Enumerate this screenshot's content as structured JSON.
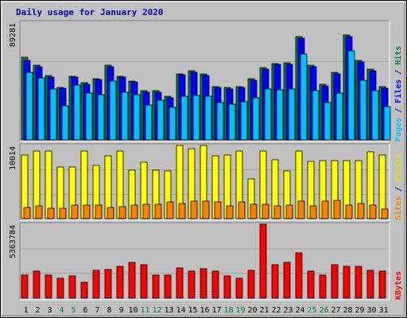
{
  "chart_data": {
    "type": "bar",
    "title": "Daily usage for January 2020",
    "categories": [
      "1",
      "2",
      "3",
      "4",
      "5",
      "6",
      "7",
      "8",
      "9",
      "10",
      "11",
      "12",
      "13",
      "14",
      "15",
      "16",
      "17",
      "18",
      "19",
      "20",
      "21",
      "22",
      "23",
      "24",
      "25",
      "26",
      "27",
      "28",
      "29",
      "30",
      "31"
    ],
    "weekend_days": [
      "4",
      "5",
      "11",
      "12",
      "18",
      "19",
      "25",
      "26"
    ],
    "panels": [
      {
        "id": "hits",
        "max_label": "89281",
        "ylim": [
          0,
          89281
        ],
        "axis_label": [
          {
            "text": "Pages",
            "color": "#00c0ff"
          },
          {
            "text": " / ",
            "color": "#000080"
          },
          {
            "text": "Files",
            "color": "#0000ff"
          },
          {
            "text": " / ",
            "color": "#000080"
          },
          {
            "text": "Hits",
            "color": "#008040"
          }
        ],
        "series": [
          {
            "name": "Hits",
            "color": "#008040",
            "values": [
              63000,
              56500,
              48800,
              40000,
              48200,
              43300,
              46200,
              56600,
              48500,
              44800,
              37100,
              37100,
              33000,
              50000,
              52300,
              50000,
              40700,
              39700,
              40700,
              46200,
              55000,
              58200,
              58300,
              78400,
              56800,
              42200,
              51200,
              79500,
              60200,
              53800,
              40400
            ]
          },
          {
            "name": "Files",
            "color": "#0000ff",
            "values": [
              60500,
              55400,
              47700,
              39500,
              47700,
              42200,
              46000,
              55400,
              47700,
              44100,
              36400,
              36400,
              32200,
              49200,
              51300,
              49000,
              39700,
              38600,
              39700,
              45200,
              53700,
              57300,
              57200,
              77400,
              55400,
              41000,
              50000,
              78400,
              59100,
              52700,
              39400
            ]
          },
          {
            "name": "Pages",
            "color": "#00c0ff",
            "values": [
              51000,
              46900,
              38900,
              25700,
              41500,
              35600,
              34300,
              44400,
              36400,
              34100,
              26800,
              29900,
              24700,
              33200,
              33600,
              33200,
              28600,
              27300,
              28900,
              32200,
              38600,
              38300,
              38600,
              65300,
              37300,
              28600,
              35600,
              67600,
              45200,
              37300,
              25500
            ]
          }
        ]
      },
      {
        "id": "visits",
        "max_label": "10014",
        "ylim": [
          0,
          10014
        ],
        "axis_label": [
          {
            "text": "Sites",
            "color": "#ff8000"
          },
          {
            "text": " / ",
            "color": "#000080"
          },
          {
            "text": "Visits",
            "color": "#e0e000"
          }
        ],
        "series": [
          {
            "name": "Visits",
            "color": "#ffff00",
            "values": [
              8700,
              9300,
              9300,
              7100,
              7100,
              9300,
              7300,
              8600,
              9300,
              6600,
              7700,
              6600,
              6500,
              10000,
              9600,
              10000,
              8600,
              8700,
              9300,
              5400,
              9300,
              8100,
              6500,
              9300,
              7800,
              7900,
              7900,
              7900,
              7900,
              9100,
              8700
            ]
          },
          {
            "name": "Sites",
            "color": "#ff8000",
            "values": [
              1500,
              1700,
              1400,
              1400,
              1800,
              1800,
              1900,
              1500,
              1600,
              1800,
              2000,
              2000,
              2300,
              2100,
              2400,
              2400,
              2300,
              1700,
              2300,
              2000,
              2000,
              1700,
              1900,
              2400,
              1700,
              2400,
              2500,
              1800,
              2100,
              1800,
              1300
            ]
          }
        ]
      },
      {
        "id": "kbytes",
        "max_label": "5363784",
        "ylim": [
          0,
          5363784
        ],
        "axis_label": [
          {
            "text": "KBytes",
            "color": "#ff0000"
          }
        ],
        "series": [
          {
            "name": "KBytes",
            "color": "#ff0000",
            "values": [
              1650000,
              1940000,
              1660000,
              1440000,
              1620000,
              1150000,
              2000000,
              2070000,
              2280000,
              2580000,
              2450000,
              1660000,
              1660000,
              2180000,
              1970000,
              2150000,
              1980000,
              1620000,
              1440000,
              2000000,
              5360000,
              2440000,
              2580000,
              3300000,
              1980000,
              1660000,
              2440000,
              2300000,
              2300000,
              2000000,
              1980000
            ]
          }
        ]
      }
    ]
  }
}
